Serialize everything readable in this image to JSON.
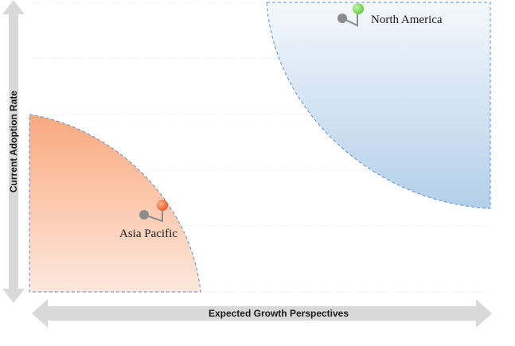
{
  "diagram": {
    "x_axis_label": "Expected Growth Perspectives",
    "y_axis_label": "Current Adoption Rate",
    "regions": [
      {
        "id": "asia-pacific",
        "label": "Asia Pacific",
        "color": "#f9a97f",
        "pin_color": "#e8572a"
      },
      {
        "id": "north-america",
        "label": "North America",
        "color": "#b3cfe9",
        "pin_color": "#5ec93f"
      }
    ],
    "colors": {
      "axis_arrow": "#d9d9d9",
      "gridline": "#e6e6e6",
      "region_border": "#5b8fd6",
      "pin_shadow": "#8c8c8c"
    }
  }
}
